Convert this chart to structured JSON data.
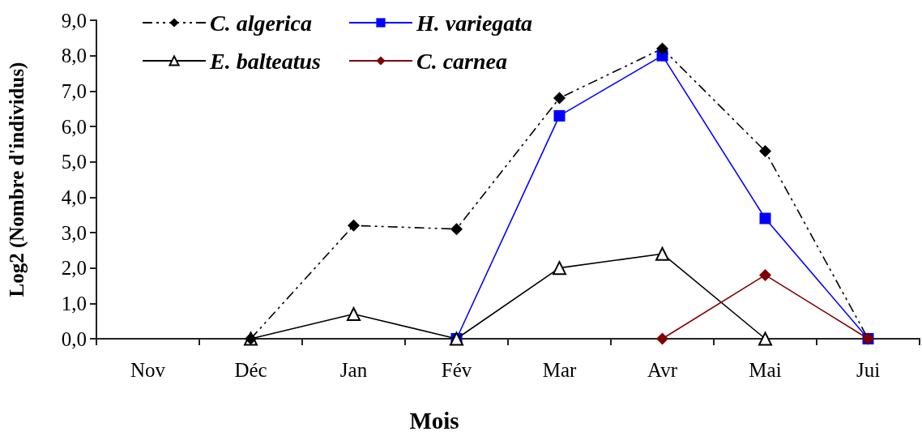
{
  "chart_data": {
    "type": "line",
    "xlabel": "Mois",
    "ylabel": "Log2 (Nombre d'individus)",
    "categories": [
      "Nov",
      "Déc",
      "Jan",
      "Fév",
      "Mar",
      "Avr",
      "Mai",
      "Jui"
    ],
    "series": [
      {
        "name": "C. algerica",
        "color": "#000000",
        "marker": "diamond",
        "line_style": "dashed",
        "values": [
          null,
          0,
          3.2,
          3.1,
          6.8,
          8.2,
          5.3,
          0
        ]
      },
      {
        "name": "H. variegata",
        "color": "#0000ff",
        "marker": "square",
        "line_style": "solid",
        "values": [
          null,
          null,
          null,
          0,
          6.3,
          8.0,
          3.4,
          0
        ]
      },
      {
        "name": "E. balteatus",
        "color": "#000000",
        "marker": "triangle",
        "line_style": "solid",
        "values": [
          null,
          0,
          0.7,
          0,
          2.0,
          2.4,
          0,
          null
        ]
      },
      {
        "name": "C. carnea",
        "color": "#800000",
        "marker": "diamond",
        "line_style": "solid",
        "values": [
          null,
          null,
          null,
          null,
          null,
          0,
          1.8,
          0
        ]
      }
    ],
    "ylim": [
      0,
      9
    ],
    "yticks": [
      {
        "value": 0,
        "label": "0,0"
      },
      {
        "value": 1,
        "label": "1,0"
      },
      {
        "value": 2,
        "label": "2,0"
      },
      {
        "value": 3,
        "label": "3,0"
      },
      {
        "value": 4,
        "label": "4,0"
      },
      {
        "value": 5,
        "label": "5,0"
      },
      {
        "value": 6,
        "label": "6,0"
      },
      {
        "value": 7,
        "label": "7,0"
      },
      {
        "value": 8,
        "label": "8,0"
      },
      {
        "value": 9,
        "label": "9,0"
      }
    ],
    "legend": "top left"
  }
}
